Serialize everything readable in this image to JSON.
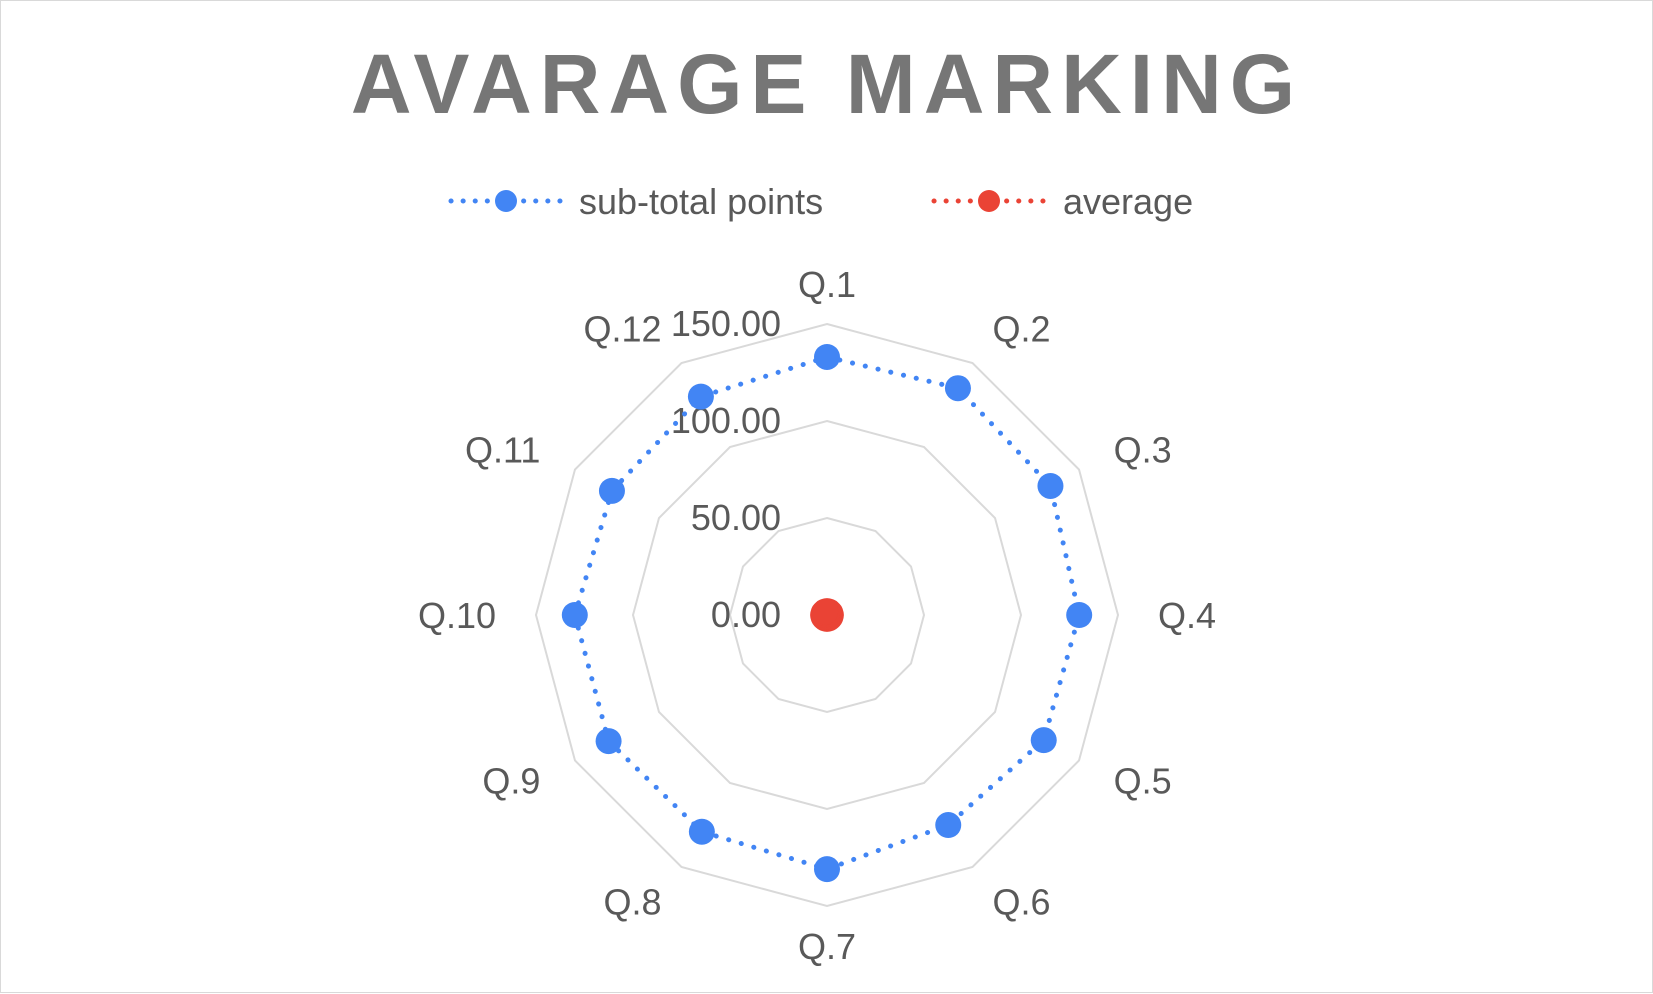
{
  "chart_data": {
    "type": "radar",
    "title": "AVARAGE MARKING",
    "categories": [
      "Q.1",
      "Q.2",
      "Q.3",
      "Q.4",
      "Q.5",
      "Q.6",
      "Q.7",
      "Q.8",
      "Q.9",
      "Q.10",
      "Q.11",
      "Q.12"
    ],
    "rlim": [
      0,
      150
    ],
    "ticks": [
      "0.00",
      "50.00",
      "100.00",
      "150.00"
    ],
    "tick_values": [
      0,
      50,
      100,
      150
    ],
    "series": [
      {
        "name": "sub-total points",
        "color": "#4285f4",
        "line_style": "dotted",
        "values": [
          133,
          135,
          133,
          130,
          129,
          125,
          131,
          129,
          130,
          130,
          128,
          130
        ]
      },
      {
        "name": "average",
        "color": "#ea4335",
        "line_style": "dotted",
        "values": [
          2,
          2,
          2,
          2,
          2,
          2,
          2,
          2,
          2,
          2,
          2,
          2
        ]
      }
    ],
    "legend_position": "top",
    "grid": true,
    "grid_color": "#d9d9d9"
  }
}
